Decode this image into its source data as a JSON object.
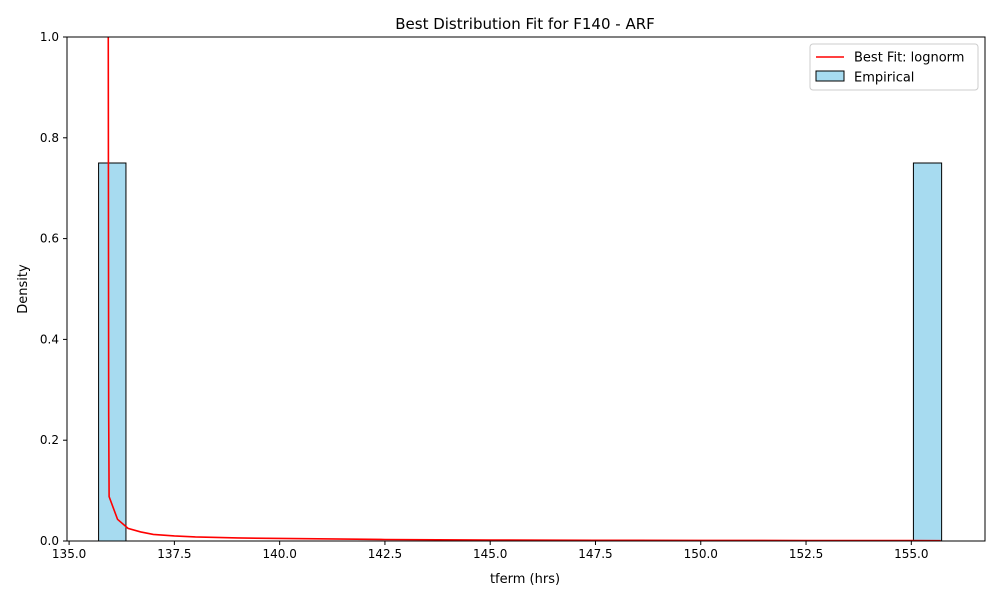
{
  "chart_data": {
    "type": "histogram",
    "title": "Best Distribution Fit for F140 - ARF",
    "xlabel": "tferm (hrs)",
    "ylabel": "Density",
    "xlim": [
      134.95,
      156.75
    ],
    "ylim": [
      0,
      1.0
    ],
    "x_ticks": [
      "135.0",
      "137.5",
      "140.0",
      "142.5",
      "145.0",
      "147.5",
      "150.0",
      "152.5",
      "155.0"
    ],
    "y_ticks": [
      "0.0",
      "0.2",
      "0.4",
      "0.6",
      "0.8",
      "1.0"
    ],
    "histogram": {
      "name": "Empirical",
      "bars": [
        {
          "x0": 135.7,
          "x1": 136.35,
          "density": 0.75
        },
        {
          "x0": 155.05,
          "x1": 155.72,
          "density": 0.75
        }
      ],
      "fill": "#a7dbf0",
      "edge": "#000000"
    },
    "fit_curve": {
      "name": "Best Fit: lognorm",
      "color": "#ff0000",
      "points": [
        [
          135.93,
          1.0
        ],
        [
          135.935,
          0.6
        ],
        [
          135.94,
          0.25
        ],
        [
          135.95,
          0.088
        ],
        [
          136.15,
          0.043
        ],
        [
          136.4,
          0.025
        ],
        [
          136.7,
          0.018
        ],
        [
          137.0,
          0.013
        ],
        [
          137.5,
          0.01
        ],
        [
          138.0,
          0.008
        ],
        [
          139.0,
          0.006
        ],
        [
          140.0,
          0.005
        ],
        [
          142.5,
          0.003
        ],
        [
          145.0,
          0.002
        ],
        [
          147.5,
          0.0015
        ],
        [
          150.0,
          0.0012
        ],
        [
          152.5,
          0.001
        ],
        [
          155.0,
          0.0008
        ],
        [
          155.7,
          0.0007
        ]
      ]
    },
    "legend": {
      "placement": "top-right",
      "entries": [
        "Best Fit: lognorm",
        "Empirical"
      ]
    }
  }
}
